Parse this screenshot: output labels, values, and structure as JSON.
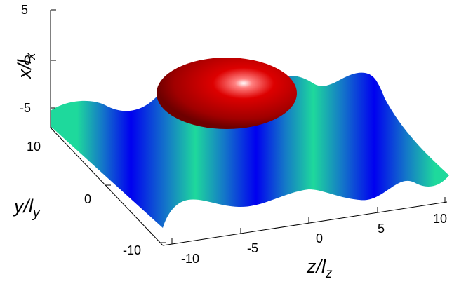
{
  "figure": {
    "axes": {
      "x": {
        "label_main": "x/l",
        "label_sub": "x",
        "ticks": [
          "5",
          "0",
          "-5"
        ]
      },
      "y": {
        "label_main": "y/l",
        "label_sub": "y",
        "ticks": [
          "10",
          "0",
          "-10"
        ]
      },
      "z": {
        "label_main": "z/l",
        "label_sub": "z",
        "ticks": [
          "-10",
          "-5",
          "0",
          "5",
          "10"
        ]
      }
    },
    "surface": {
      "shape": "sinusoidal wave along z",
      "colormap": [
        "#0000ff",
        "#1fd69a"
      ]
    },
    "ellipsoid": {
      "color": "#cc0000",
      "highlight": "#ffffff"
    }
  }
}
